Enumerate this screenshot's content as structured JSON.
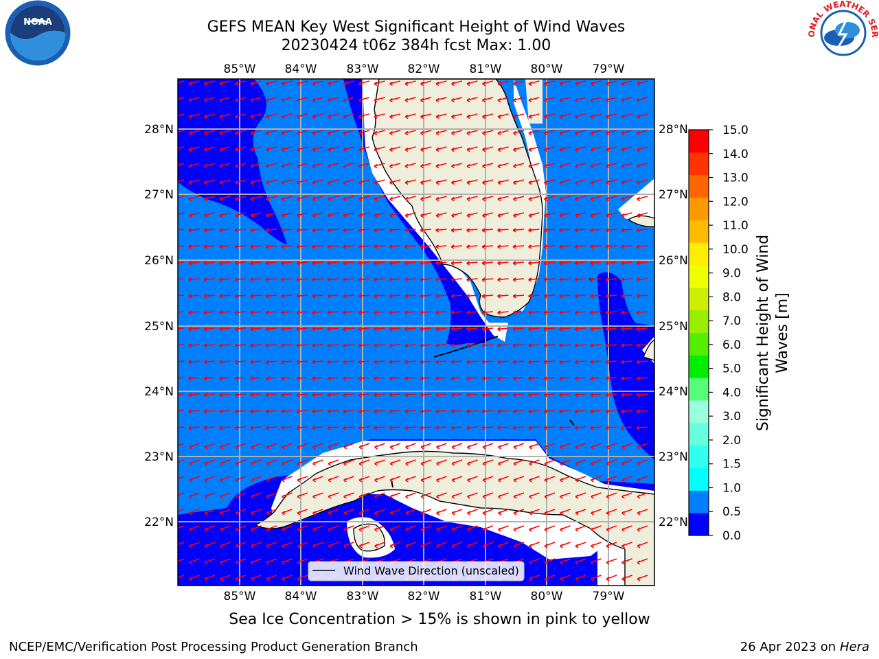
{
  "title_line1": "GEFS MEAN Key West Significant Height of Wind Waves",
  "title_line2": "20230424 t06z 384h fcst   Max: 1.00",
  "longitude_ticks": [
    "85°W",
    "84°W",
    "83°W",
    "82°W",
    "81°W",
    "80°W",
    "79°W"
  ],
  "latitude_ticks": [
    "28°N",
    "27°N",
    "26°N",
    "25°N",
    "24°N",
    "23°N",
    "22°N"
  ],
  "colorbar": {
    "label": "Significant Height of Wind Waves [m]",
    "ticks": [
      "15.0",
      "14.0",
      "13.0",
      "12.0",
      "11.0",
      "10.0",
      "9.0",
      "8.0",
      "7.0",
      "6.0",
      "5.0",
      "4.0",
      "3.0",
      "2.0",
      "1.5",
      "1.0",
      "0.5",
      "0.0"
    ],
    "colors": [
      "#0000ff",
      "#0080ff",
      "#00ffff",
      "#33ffee",
      "#66ffdd",
      "#99ffdd",
      "#55ff77",
      "#00ee00",
      "#55ee00",
      "#99ee00",
      "#ccee00",
      "#eeff00",
      "#ffee00",
      "#ffbb00",
      "#ff9900",
      "#ff6600",
      "#ff3300",
      "#ff0000"
    ]
  },
  "legend_label": "Wind Wave Direction (unscaled)",
  "ice_note": "Sea Ice Concentration > 15% is shown in pink to yellow",
  "footer_left": "NCEP/EMC/Verification Post Processing Product Generation Branch",
  "footer_date": "26 Apr 2023 on ",
  "footer_host": "Hera",
  "colors": {
    "ocean_low": "#0000ff",
    "ocean_mid": "#0080ff",
    "land": "#efeedd",
    "arrow": "#ff0000",
    "grid": "#b0b0b0"
  },
  "logos": {
    "left": "NOAA",
    "right": "NATIONAL WEATHER SERVICE"
  }
}
